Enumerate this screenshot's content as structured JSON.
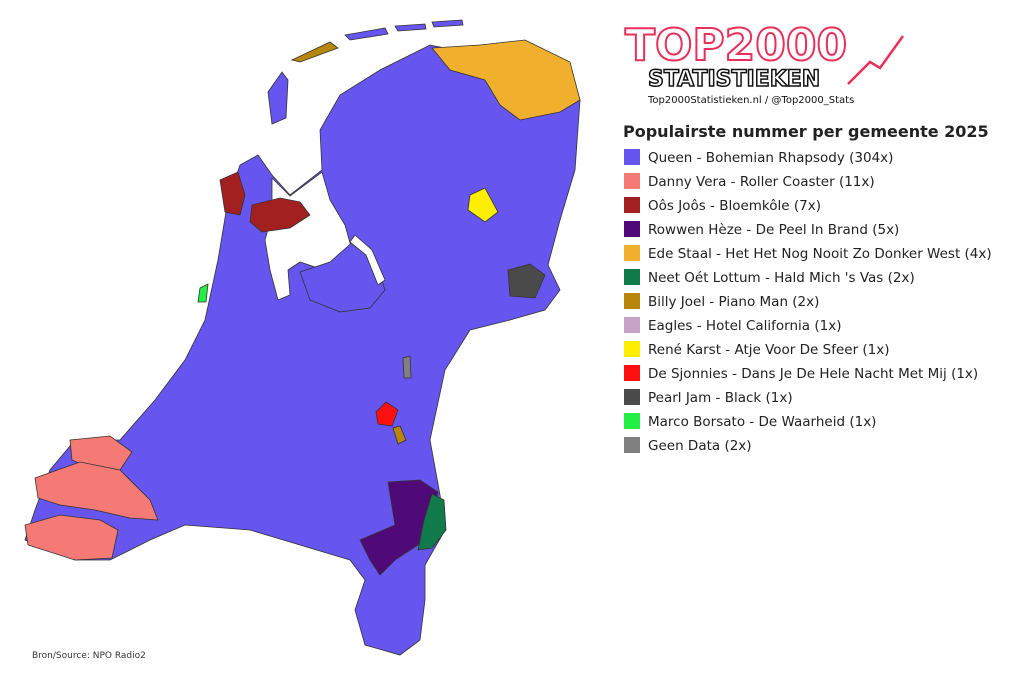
{
  "logo": {
    "title": "TOP2000",
    "subtitle": "STATISTIEKEN",
    "credit": "Top2000Statistieken.nl / @Top2000_Stats"
  },
  "legend": {
    "title": "Populairste nummer per gemeente 2025",
    "items": [
      {
        "label": "Queen - Bohemian Rhapsody (304x)",
        "color": "#6655ee"
      },
      {
        "label": "Danny Vera - Roller Coaster (11x)",
        "color": "#f57a76"
      },
      {
        "label": "Oôs Joôs - Bloemkôle (7x)",
        "color": "#a32020"
      },
      {
        "label": "Rowwen Hèze - De Peel In Brand (5x)",
        "color": "#4f0a77"
      },
      {
        "label": "Ede Staal - Het Het Nog Nooit Zo Donker West (4x)",
        "color": "#f0b02e"
      },
      {
        "label": "Neet Oét Lottum - Hald Mich 's Vas (2x)",
        "color": "#117a4a"
      },
      {
        "label": "Billy Joel - Piano Man (2x)",
        "color": "#b8860b"
      },
      {
        "label": "Eagles - Hotel California (1x)",
        "color": "#c8a2c8"
      },
      {
        "label": "René Karst - Atje Voor De Sfeer (1x)",
        "color": "#ffee00"
      },
      {
        "label": "De Sjonnies - Dans Je De Hele Nacht Met Mij (1x)",
        "color": "#ff1010"
      },
      {
        "label": "Pearl Jam - Black (1x)",
        "color": "#4a4a4a"
      },
      {
        "label": "Marco Borsato - De Waarheid (1x)",
        "color": "#22ee44"
      },
      {
        "label": "Geen Data (2x)",
        "color": "#808080"
      }
    ]
  },
  "source": "Bron/Source: NPO Radio2"
}
